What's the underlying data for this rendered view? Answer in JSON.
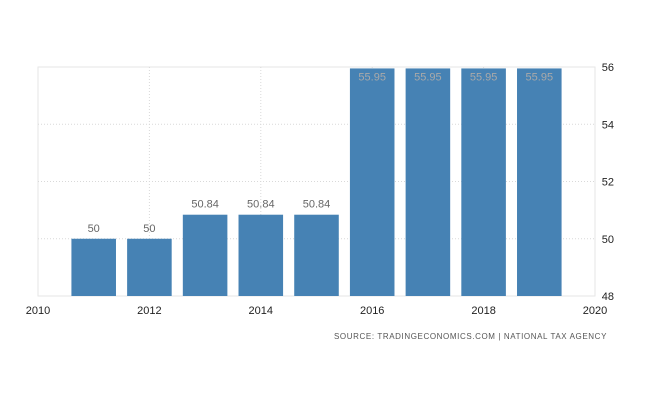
{
  "chart_data": {
    "type": "bar",
    "x": [
      2011,
      2012,
      2013,
      2014,
      2015,
      2016,
      2017,
      2018,
      2019
    ],
    "values": [
      50,
      50,
      50.84,
      50.84,
      50.84,
      55.95,
      55.95,
      55.95,
      55.95
    ],
    "data_labels": [
      "50",
      "50",
      "50.84",
      "50.84",
      "50.84",
      "55.95",
      "55.95",
      "55.95",
      "55.95"
    ],
    "x_ticks": [
      "2010",
      "2012",
      "2014",
      "2016",
      "2018",
      "2020"
    ],
    "y_ticks": [
      "48",
      "50",
      "52",
      "54",
      "56"
    ],
    "xlim": [
      2010,
      2020
    ],
    "ylim": [
      48,
      56
    ],
    "y_axis_side": "right",
    "grid": true,
    "bar_color": "#4682b4",
    "label_color_outside": "#666666",
    "label_color_inside": "#a9a9a9"
  },
  "source": "SOURCE: TRADINGECONOMICS.COM  |  NATIONAL TAX AGENCY"
}
